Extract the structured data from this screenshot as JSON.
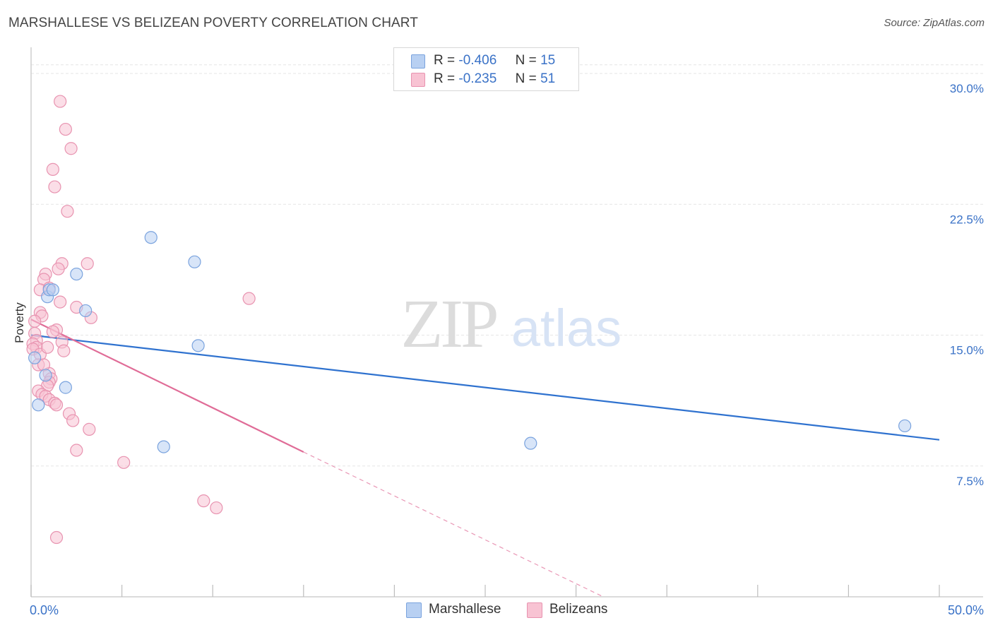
{
  "title": "MARSHALLESE VS BELIZEAN POVERTY CORRELATION CHART",
  "source": "Source: ZipAtlas.com",
  "colors": {
    "marshallese_fill": "#b8d0f2",
    "marshallese_stroke": "#7aa3de",
    "marshallese_line": "#2f72cf",
    "belizean_fill": "#f8c3d3",
    "belizean_stroke": "#e893b0",
    "belizean_line": "#e06c97",
    "tick_label": "#3a72c7",
    "grid": "#e6e6e6"
  },
  "legend": {
    "rows": [
      {
        "r_label": "R =",
        "r_value": "-0.406",
        "n_label": "N =",
        "n_value": "15"
      },
      {
        "r_label": "R =",
        "r_value": "-0.235",
        "n_label": "N =",
        "n_value": "51"
      }
    ],
    "bottom": [
      "Marshallese",
      "Belizeans"
    ]
  },
  "watermark": {
    "zip": "ZIP",
    "atlas": "atlas"
  },
  "chart_data": {
    "type": "scatter",
    "ylabel": "Poverty",
    "xlabel": "",
    "xlim": [
      0,
      50
    ],
    "ylim": [
      0,
      31.5
    ],
    "x_tick_labels": [
      {
        "value": 0,
        "label": "0.0%"
      },
      {
        "value": 50,
        "label": "50.0%"
      }
    ],
    "x_minor_ticks": [
      0,
      5,
      10,
      15,
      20,
      25,
      30,
      35,
      40,
      45,
      50
    ],
    "y_ticks": [
      {
        "value": 7.5,
        "label": "7.5%"
      },
      {
        "value": 15,
        "label": "15.0%"
      },
      {
        "value": 22.5,
        "label": "22.5%"
      },
      {
        "value": 30,
        "label": "30.0%"
      }
    ],
    "series": [
      {
        "name": "Marshallese",
        "r": -0.406,
        "n": 15,
        "trend": {
          "x0": 0,
          "y0": 15.0,
          "x1": 50,
          "y1": 9.0
        },
        "points": [
          {
            "x": 0.2,
            "y": 13.7
          },
          {
            "x": 0.4,
            "y": 11.0
          },
          {
            "x": 0.8,
            "y": 12.7
          },
          {
            "x": 0.9,
            "y": 17.2
          },
          {
            "x": 1.0,
            "y": 17.6
          },
          {
            "x": 1.2,
            "y": 17.6
          },
          {
            "x": 1.9,
            "y": 12.0
          },
          {
            "x": 2.5,
            "y": 18.5
          },
          {
            "x": 3.0,
            "y": 16.4
          },
          {
            "x": 6.6,
            "y": 20.6
          },
          {
            "x": 7.3,
            "y": 8.6
          },
          {
            "x": 9.0,
            "y": 19.2
          },
          {
            "x": 9.2,
            "y": 14.4
          },
          {
            "x": 27.5,
            "y": 8.8
          },
          {
            "x": 48.1,
            "y": 9.8
          }
        ]
      },
      {
        "name": "Belizeans",
        "r": -0.235,
        "n": 51,
        "trend": {
          "x0": 0,
          "y0": 15.9,
          "x1": 15,
          "y1": 8.3
        },
        "trend_dashed": {
          "x0": 15,
          "y0": 8.3,
          "x1": 31.5,
          "y1": 0.0
        },
        "points": [
          {
            "x": 1.6,
            "y": 28.4
          },
          {
            "x": 1.9,
            "y": 26.8
          },
          {
            "x": 2.2,
            "y": 25.7
          },
          {
            "x": 1.2,
            "y": 24.5
          },
          {
            "x": 1.3,
            "y": 23.5
          },
          {
            "x": 2.0,
            "y": 22.1
          },
          {
            "x": 1.7,
            "y": 19.1
          },
          {
            "x": 1.5,
            "y": 18.8
          },
          {
            "x": 3.1,
            "y": 19.1
          },
          {
            "x": 0.8,
            "y": 18.5
          },
          {
            "x": 0.7,
            "y": 18.2
          },
          {
            "x": 0.5,
            "y": 17.6
          },
          {
            "x": 1.0,
            "y": 17.7
          },
          {
            "x": 12.0,
            "y": 17.1
          },
          {
            "x": 1.6,
            "y": 16.9
          },
          {
            "x": 2.5,
            "y": 16.6
          },
          {
            "x": 0.5,
            "y": 16.3
          },
          {
            "x": 0.6,
            "y": 16.1
          },
          {
            "x": 3.3,
            "y": 16.0
          },
          {
            "x": 0.2,
            "y": 15.8
          },
          {
            "x": 1.4,
            "y": 15.3
          },
          {
            "x": 0.2,
            "y": 15.1
          },
          {
            "x": 0.3,
            "y": 14.7
          },
          {
            "x": 0.1,
            "y": 14.5
          },
          {
            "x": 0.3,
            "y": 14.3
          },
          {
            "x": 0.1,
            "y": 14.2
          },
          {
            "x": 1.7,
            "y": 14.6
          },
          {
            "x": 1.8,
            "y": 14.1
          },
          {
            "x": 0.5,
            "y": 13.9
          },
          {
            "x": 0.4,
            "y": 13.3
          },
          {
            "x": 1.0,
            "y": 12.8
          },
          {
            "x": 1.1,
            "y": 12.5
          },
          {
            "x": 1.0,
            "y": 12.3
          },
          {
            "x": 0.9,
            "y": 12.1
          },
          {
            "x": 0.4,
            "y": 11.8
          },
          {
            "x": 0.6,
            "y": 11.6
          },
          {
            "x": 0.8,
            "y": 11.5
          },
          {
            "x": 1.0,
            "y": 11.3
          },
          {
            "x": 1.3,
            "y": 11.1
          },
          {
            "x": 1.4,
            "y": 11.0
          },
          {
            "x": 2.1,
            "y": 10.5
          },
          {
            "x": 2.3,
            "y": 10.1
          },
          {
            "x": 3.2,
            "y": 9.6
          },
          {
            "x": 2.5,
            "y": 8.4
          },
          {
            "x": 5.1,
            "y": 7.7
          },
          {
            "x": 9.5,
            "y": 5.5
          },
          {
            "x": 10.2,
            "y": 5.1
          },
          {
            "x": 1.4,
            "y": 3.4
          },
          {
            "x": 0.7,
            "y": 13.3
          },
          {
            "x": 0.9,
            "y": 14.3
          },
          {
            "x": 1.2,
            "y": 15.2
          }
        ]
      }
    ]
  }
}
